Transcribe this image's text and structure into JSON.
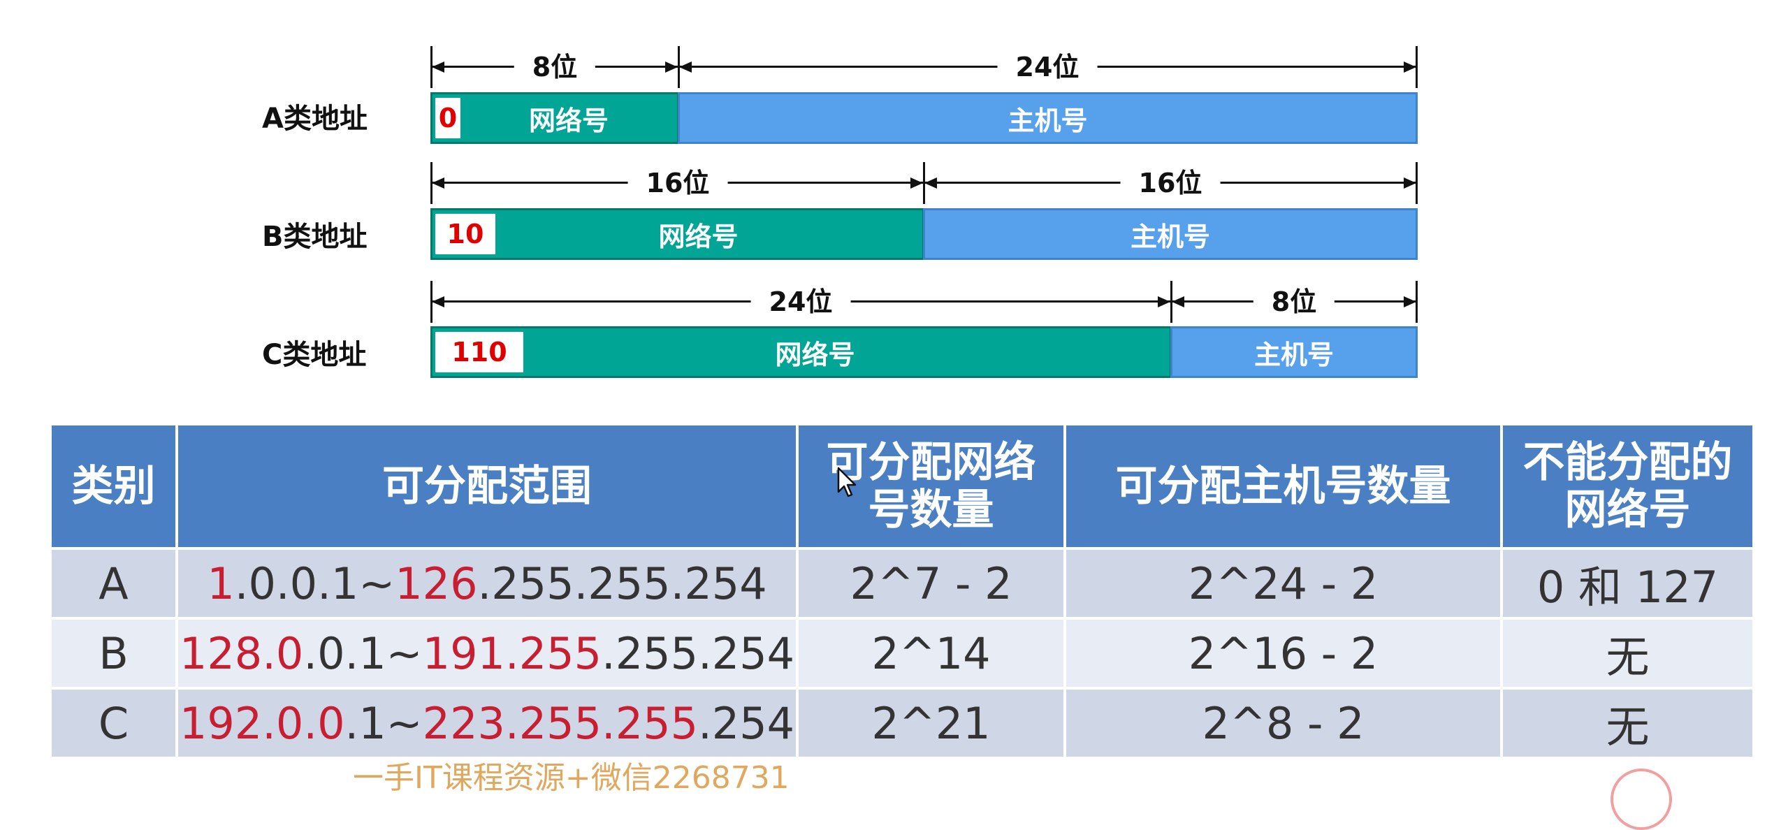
{
  "diagram": {
    "rows": [
      {
        "label": "A类地址",
        "dims": [
          {
            "text": "8位"
          },
          {
            "text": "24位"
          }
        ],
        "prefix": "0",
        "network": "网络号",
        "host": "主机号"
      },
      {
        "label": "B类地址",
        "dims": [
          {
            "text": "16位"
          },
          {
            "text": "16位"
          }
        ],
        "prefix": "10",
        "network": "网络号",
        "host": "主机号"
      },
      {
        "label": "C类地址",
        "dims": [
          {
            "text": "24位"
          },
          {
            "text": "8位"
          }
        ],
        "prefix": "110",
        "network": "网络号",
        "host": "主机号"
      }
    ],
    "colors": {
      "network": "#00a596",
      "host": "#56a0ec",
      "prefix_text": "#e00000"
    }
  },
  "table": {
    "headers": [
      "类别",
      "可分配范围",
      "可分配网络号数量",
      "可分配主机号数量",
      "不能分配的网络号"
    ],
    "rows": [
      {
        "class": "A",
        "range_parts": [
          {
            "t": "1",
            "red": true
          },
          {
            "t": ".0.0.1~",
            "red": false
          },
          {
            "t": "126",
            "red": true
          },
          {
            "t": ".255.255.254",
            "red": false
          }
        ],
        "net_count": "2^7 - 2",
        "host_count": "2^24 - 2",
        "reserved": "0 和 127"
      },
      {
        "class": "B",
        "range_parts": [
          {
            "t": "128.0",
            "red": true
          },
          {
            "t": ".0.1~",
            "red": false
          },
          {
            "t": "191.255",
            "red": true
          },
          {
            "t": ".255.254",
            "red": false
          }
        ],
        "net_count": "2^14",
        "host_count": "2^16 - 2",
        "reserved": "无"
      },
      {
        "class": "C",
        "range_parts": [
          {
            "t": "192.0.0",
            "red": true
          },
          {
            "t": ".1~",
            "red": false
          },
          {
            "t": "223.255.255",
            "red": true
          },
          {
            "t": ".254",
            "red": false
          }
        ],
        "net_count": "2^21",
        "host_count": "2^8 - 2",
        "reserved": "无"
      }
    ],
    "colors": {
      "header_bg": "#4a7fc3",
      "row_odd": "#cfd7e7",
      "row_even": "#e8ecf4",
      "highlight_text": "#c81e32"
    }
  },
  "watermark": "一手IT课程资源+微信2268731"
}
